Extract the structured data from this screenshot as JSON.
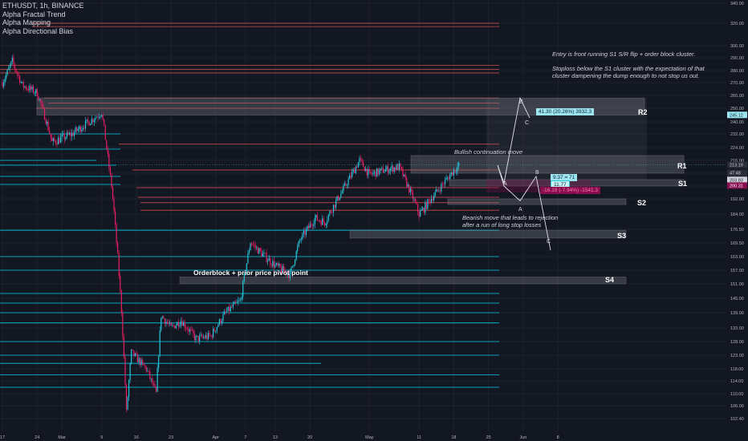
{
  "header": {
    "symbol_line": "ETHUSDT, 1h, BINANCE",
    "indicators": [
      "Alpha Fractal Trend",
      "Alpha Mapping",
      "Alpha Directional Bias"
    ]
  },
  "annotations": {
    "entry_note": "Entry is front running S1 S/R flip + order block cluster.",
    "stoploss_note": "Stoploss below the S1 cluster with the expectation of that cluster dampening the dump enough to not stop us out.",
    "bullish_note": "Bullish continuation move",
    "bearish_note": "Bearish move that leads to rejection after a run of long stop losses",
    "orderblock_note": "Orderblock + prior price pivot point"
  },
  "zones": [
    "R2",
    "R1",
    "S1",
    "S2",
    "S3",
    "S4"
  ],
  "projection_labels": [
    "B",
    "C",
    "A",
    "B",
    "A",
    "C"
  ],
  "position_boxes": {
    "target": "41.30 (20.26%) 3932.3",
    "ratio_top": "9.37 = 71",
    "ratio_bottom": "11.77",
    "stop": "-16.19 (-7.94%) -1541.3"
  },
  "price_tags": {
    "upper": "245.12",
    "current": "213.19",
    "countdown": "47:48",
    "entry": "203.83",
    "stop": "200.31"
  },
  "colors": {
    "background": "#131722",
    "up": "#26c6da",
    "down": "#e91e63",
    "resistance": "#ef5350",
    "support": "#00bcd4",
    "zone": "#787b86",
    "target_box": "#9be4f0",
    "stop_box": "#880e4f"
  },
  "chart_data": {
    "type": "candlestick",
    "symbol": "ETHUSDT",
    "timeframe": "1h",
    "exchange": "BINANCE",
    "y_axis_ticks": [
      340.0,
      320.0,
      300.0,
      290.0,
      280.0,
      270.0,
      260.0,
      250.0,
      240.0,
      232.0,
      224.0,
      216.0,
      208.0,
      200.0,
      192.0,
      184.0,
      176.5,
      169.5,
      163.0,
      157.0,
      151.0,
      145.0,
      139.0,
      133.0,
      128.0,
      123.0,
      118.0,
      114.0,
      110.0,
      106.0,
      102.4
    ],
    "x_axis_ticks": [
      "17",
      "24",
      "Mar",
      "9",
      "16",
      "23",
      "Apr",
      "7",
      "13",
      "20",
      "May",
      "11",
      "18",
      "25",
      "Jun",
      "8"
    ],
    "price_path_control_points": [
      {
        "date": "Feb 17",
        "price": 270
      },
      {
        "date": "Feb 19",
        "price": 287
      },
      {
        "date": "Feb 21",
        "price": 268
      },
      {
        "date": "Feb 24",
        "price": 262
      },
      {
        "date": "Feb 27",
        "price": 227
      },
      {
        "date": "Mar 2",
        "price": 232
      },
      {
        "date": "Mar 7",
        "price": 244
      },
      {
        "date": "Mar 8",
        "price": 247
      },
      {
        "date": "Mar 10",
        "price": 200
      },
      {
        "date": "Mar 12",
        "price": 140
      },
      {
        "date": "Mar 13",
        "price": 104
      },
      {
        "date": "Mar 14",
        "price": 124
      },
      {
        "date": "Mar 17",
        "price": 118
      },
      {
        "date": "Mar 19",
        "price": 110
      },
      {
        "date": "Mar 20",
        "price": 138
      },
      {
        "date": "Mar 22",
        "price": 133
      },
      {
        "date": "Mar 24",
        "price": 136
      },
      {
        "date": "Mar 27",
        "price": 129
      },
      {
        "date": "Mar 30",
        "price": 130
      },
      {
        "date": "Apr 2",
        "price": 139
      },
      {
        "date": "Apr 5",
        "price": 144
      },
      {
        "date": "Apr 7",
        "price": 170
      },
      {
        "date": "Apr 9",
        "price": 165
      },
      {
        "date": "Apr 12",
        "price": 159
      },
      {
        "date": "Apr 15",
        "price": 155
      },
      {
        "date": "Apr 17",
        "price": 171
      },
      {
        "date": "Apr 20",
        "price": 182
      },
      {
        "date": "Apr 22",
        "price": 180
      },
      {
        "date": "Apr 25",
        "price": 194
      },
      {
        "date": "Apr 29",
        "price": 216
      },
      {
        "date": "May 1",
        "price": 207
      },
      {
        "date": "May 4",
        "price": 210
      },
      {
        "date": "May 7",
        "price": 212
      },
      {
        "date": "May 9",
        "price": 198
      },
      {
        "date": "May 11",
        "price": 184
      },
      {
        "date": "May 12",
        "price": 187
      },
      {
        "date": "May 15",
        "price": 198
      },
      {
        "date": "May 17",
        "price": 206
      },
      {
        "date": "May 19",
        "price": 213
      }
    ],
    "horizontal_levels": {
      "resistance": [
        320,
        317,
        284,
        281,
        278,
        258,
        254,
        250,
        226,
        210,
        199,
        193,
        190,
        186
      ],
      "support": [
        232,
        223,
        216,
        213,
        206,
        201,
        176,
        163,
        157,
        147,
        143,
        139,
        135,
        128,
        123,
        120,
        116,
        112
      ]
    },
    "zones": [
      {
        "label": "R2",
        "price_low": 245,
        "price_high": 258
      },
      {
        "label": "R1",
        "price_low": 208,
        "price_high": 219
      },
      {
        "label": "S1",
        "price_low": 200,
        "price_high": 204
      },
      {
        "label": "S2",
        "price_low": 189,
        "price_high": 192
      },
      {
        "label": "S3",
        "price_low": 172,
        "price_high": 176
      },
      {
        "label": "S4",
        "price_low": 151,
        "price_high": 154
      }
    ],
    "projection_scenarios": [
      {
        "name": "Bullish continuation move",
        "path_prices": [
          213,
          202,
          258,
          243
        ]
      },
      {
        "name": "Bearish move",
        "path_prices": [
          213,
          200,
          191,
          206,
          166
        ]
      }
    ]
  }
}
